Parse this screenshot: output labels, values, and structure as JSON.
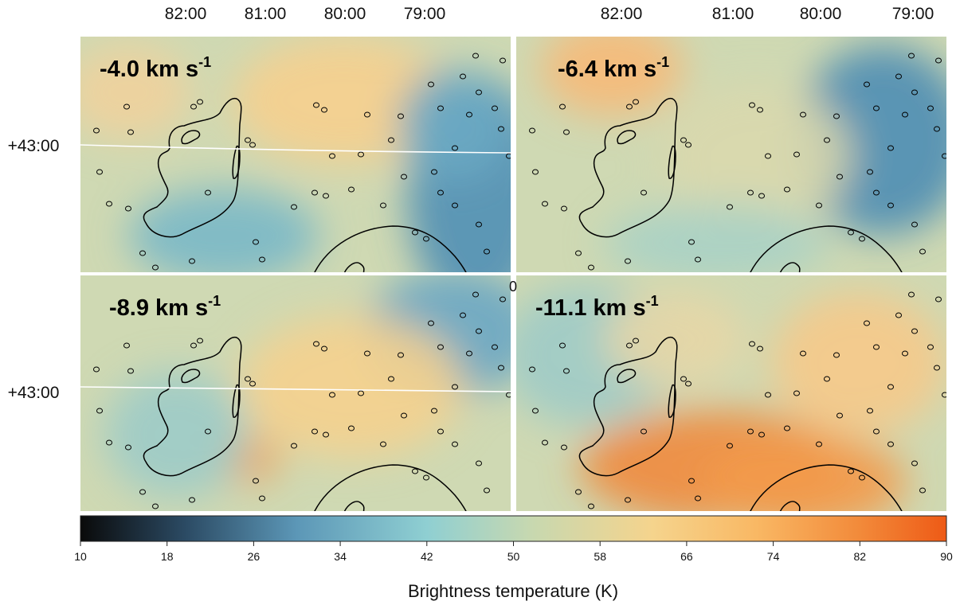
{
  "chart_data": {
    "type": "heatmap",
    "description_units": "brightness temperature maps at four velocities",
    "ra_ticks": [
      "82:00",
      "81:00",
      "80:00",
      "79:00"
    ],
    "dec_ticks": [
      "+43:00"
    ],
    "extra_tick": "0",
    "panels": [
      {
        "id": "p1",
        "velocity_label": "-4.0 km s",
        "velocity_exp": "-1"
      },
      {
        "id": "p2",
        "velocity_label": "-6.4 km s",
        "velocity_exp": "-1"
      },
      {
        "id": "p3",
        "velocity_label": "-8.9 km s",
        "velocity_exp": "-1"
      },
      {
        "id": "p4",
        "velocity_label": "-11.1 km s",
        "velocity_exp": "-1"
      }
    ],
    "colorbar": {
      "label": "Brightness temperature (K)",
      "min": 10,
      "max": 90,
      "ticks": [
        10,
        18,
        26,
        34,
        42,
        50,
        58,
        66,
        74,
        82,
        90
      ],
      "colormap": [
        "#0a0a0a",
        "#2b4a63",
        "#5c97b7",
        "#8fcfd2",
        "#c7d8b0",
        "#f5d48d",
        "#f9b864",
        "#f28a3a",
        "#ee5a16"
      ]
    }
  }
}
